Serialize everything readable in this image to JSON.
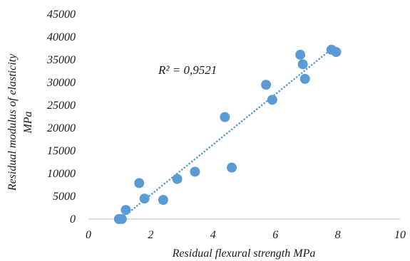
{
  "chart_data": {
    "type": "scatter",
    "xlabel": "Residual flexural strength MPa",
    "ylabel_lines": [
      "Residual modulus of elasticity",
      "MPa"
    ],
    "xlim": [
      0,
      10
    ],
    "ylim": [
      0,
      45000
    ],
    "x_ticks": [
      0,
      2,
      4,
      6,
      8,
      10
    ],
    "y_ticks": [
      0,
      5000,
      10000,
      15000,
      20000,
      25000,
      30000,
      35000,
      40000,
      45000
    ],
    "grid": false,
    "annotation": "R² = 0,9521",
    "trendline": {
      "style": "dotted",
      "type": "linear",
      "x_range": [
        1.0,
        7.95
      ]
    },
    "points": [
      {
        "x": 0.98,
        "y": 0
      },
      {
        "x": 1.07,
        "y": 0
      },
      {
        "x": 1.2,
        "y": 2000
      },
      {
        "x": 1.63,
        "y": 7900
      },
      {
        "x": 1.8,
        "y": 4500
      },
      {
        "x": 2.4,
        "y": 4200
      },
      {
        "x": 2.85,
        "y": 8800
      },
      {
        "x": 3.42,
        "y": 10400
      },
      {
        "x": 4.38,
        "y": 22400
      },
      {
        "x": 4.6,
        "y": 11300
      },
      {
        "x": 5.7,
        "y": 29500
      },
      {
        "x": 5.9,
        "y": 26200
      },
      {
        "x": 6.8,
        "y": 36100
      },
      {
        "x": 6.88,
        "y": 34000
      },
      {
        "x": 6.95,
        "y": 30800
      },
      {
        "x": 7.8,
        "y": 37200
      },
      {
        "x": 7.95,
        "y": 36700
      }
    ],
    "colors": {
      "marker": "#5b9bd5",
      "trendline": "#5b9bd5",
      "axis": "#bfbfbf"
    }
  }
}
